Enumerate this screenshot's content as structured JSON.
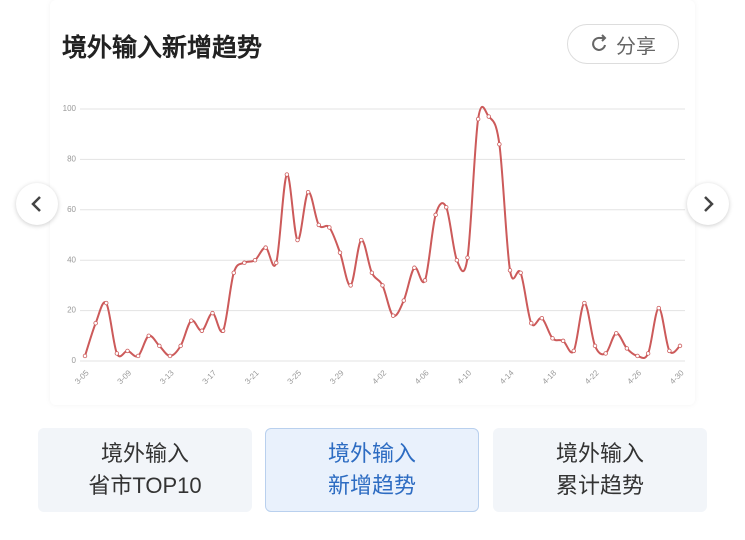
{
  "header": {
    "title": "境外输入新增趋势",
    "share": "分享"
  },
  "chart_data": {
    "type": "line",
    "categories": [
      "3-05",
      null,
      null,
      null,
      "3-09",
      null,
      null,
      null,
      "3-13",
      null,
      null,
      null,
      "3-17",
      null,
      null,
      null,
      "3-21",
      null,
      null,
      null,
      "3-25",
      null,
      null,
      null,
      "3-29",
      null,
      null,
      null,
      "4-02",
      null,
      null,
      null,
      "4-06",
      null,
      null,
      null,
      "4-10",
      null,
      null,
      null,
      "4-14",
      null,
      null,
      null,
      "4-18",
      null,
      null,
      null,
      "4-22",
      null,
      null,
      null,
      "4-26",
      null,
      null,
      null,
      "4-30"
    ],
    "series": [
      {
        "color": "#cc5a5a",
        "values": [
          2,
          15,
          23,
          3,
          4,
          2,
          10,
          6,
          2,
          6,
          16,
          12,
          19,
          12,
          35,
          39,
          40,
          45,
          39,
          74,
          48,
          67,
          54,
          53,
          43,
          30,
          48,
          35,
          30,
          18,
          24,
          37,
          32,
          58,
          61,
          40,
          41,
          96,
          97,
          86,
          36,
          35,
          15,
          17,
          9,
          8,
          4,
          23,
          6,
          3,
          11,
          5,
          2,
          3,
          21,
          4,
          6
        ]
      }
    ],
    "ylim": [
      0,
      100
    ],
    "yticks": [
      0,
      20,
      40,
      60,
      80,
      100
    ],
    "grid": true
  },
  "tabs": [
    {
      "lines": [
        "境外输入",
        "省市TOP10"
      ]
    },
    {
      "lines": [
        "境外输入",
        "新增趋势"
      ],
      "active": true
    },
    {
      "lines": [
        "境外输入",
        "累计趋势"
      ]
    }
  ]
}
